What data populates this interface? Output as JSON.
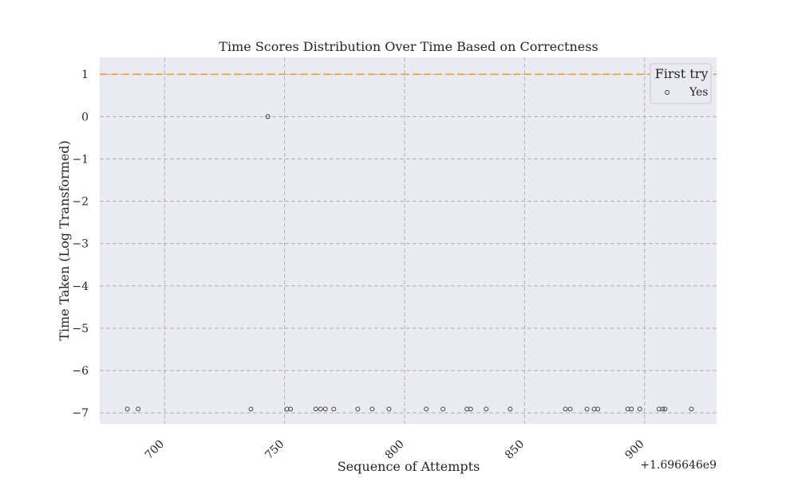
{
  "chart_data": {
    "type": "scatter",
    "title": "Time Scores Distribution Over Time Based on Correctness",
    "xlabel": "Sequence of Attempts",
    "ylabel": "Time Taken (Log Transformed)",
    "x_offset_label": "+1.696646e9",
    "xlim": [
      673,
      930
    ],
    "ylim": [
      -7.26,
      1.4
    ],
    "x_ticks": [
      700,
      750,
      800,
      850,
      900
    ],
    "y_ticks": [
      1,
      0,
      -1,
      -2,
      -3,
      -4,
      -5,
      -6,
      -7
    ],
    "y_tick_labels": [
      "1",
      "0",
      "−1",
      "−2",
      "−3",
      "−4",
      "−5",
      "−6",
      "−7"
    ],
    "grid": true,
    "reference_line": {
      "y": 1,
      "color": "#ffa500",
      "style": "dashed"
    },
    "legend": {
      "title": "First try",
      "placement": "top-right"
    },
    "series": [
      {
        "name": "Yes",
        "marker": "hollow-circle",
        "points": [
          {
            "x": 684.5,
            "y": -6.91
          },
          {
            "x": 689,
            "y": -6.91
          },
          {
            "x": 736,
            "y": -6.91
          },
          {
            "x": 743,
            "y": 0
          },
          {
            "x": 751,
            "y": -6.91
          },
          {
            "x": 752.5,
            "y": -6.91
          },
          {
            "x": 763,
            "y": -6.91
          },
          {
            "x": 765,
            "y": -6.91
          },
          {
            "x": 767,
            "y": -6.91
          },
          {
            "x": 770.5,
            "y": -6.91
          },
          {
            "x": 780.5,
            "y": -6.91
          },
          {
            "x": 786.5,
            "y": -6.91
          },
          {
            "x": 793.5,
            "y": -6.91
          },
          {
            "x": 809,
            "y": -6.91
          },
          {
            "x": 816,
            "y": -6.91
          },
          {
            "x": 826,
            "y": -6.91
          },
          {
            "x": 827.5,
            "y": -6.91
          },
          {
            "x": 834,
            "y": -6.91
          },
          {
            "x": 844,
            "y": -6.91
          },
          {
            "x": 867,
            "y": -6.91
          },
          {
            "x": 869,
            "y": -6.91
          },
          {
            "x": 876,
            "y": -6.91
          },
          {
            "x": 879,
            "y": -6.91
          },
          {
            "x": 880.5,
            "y": -6.91
          },
          {
            "x": 893,
            "y": -6.91
          },
          {
            "x": 894.5,
            "y": -6.91
          },
          {
            "x": 898,
            "y": -6.91
          },
          {
            "x": 906,
            "y": -6.91
          },
          {
            "x": 907.5,
            "y": -6.91
          },
          {
            "x": 908.5,
            "y": -6.91
          },
          {
            "x": 919.5,
            "y": -6.91
          }
        ]
      }
    ]
  },
  "colors": {
    "plot_background": "#eaeaf2",
    "grid": "#b0b0b0",
    "reference_line": "#ffa500",
    "marker_edge": "#333333"
  }
}
